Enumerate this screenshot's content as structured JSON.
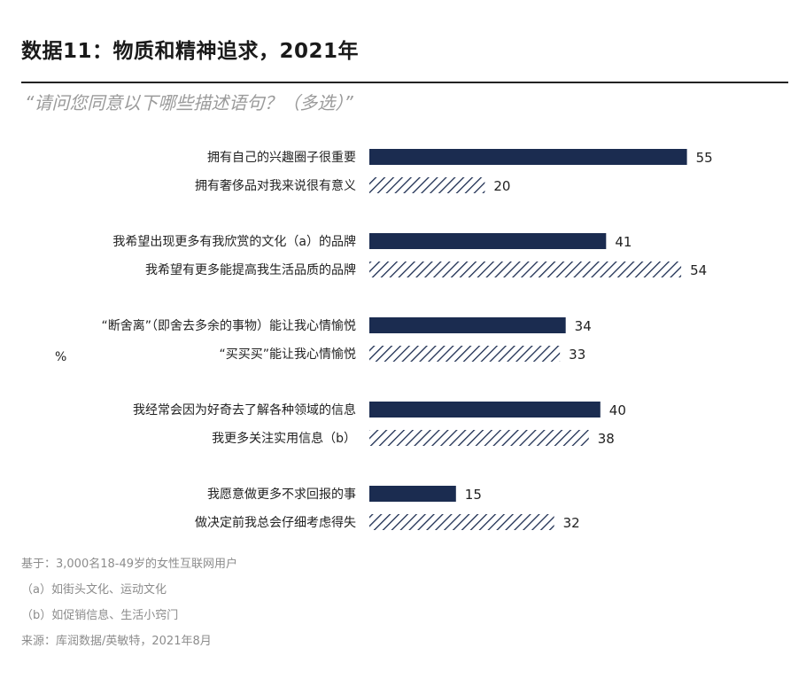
{
  "title": "数据11：物质和精神追求，2021年",
  "subtitle": "“请问您同意以下哪些描述语句？（多选）”",
  "unit_label": "%",
  "colors": {
    "solid_bar": "#1b2c50",
    "hatch_bar": "#1b2c50"
  },
  "chart_data": {
    "type": "bar",
    "orientation": "horizontal",
    "title": "数据11：物质和精神追求，2021年",
    "subtitle": "“请问您同意以下哪些描述语句？（多选）”",
    "unit": "%",
    "xlim": [
      0,
      60
    ],
    "grid": false,
    "legend": "none",
    "groups": [
      {
        "items": [
          {
            "label": "拥有自己的兴趣圈子很重要",
            "value": 55,
            "style": "solid"
          },
          {
            "label": "拥有奢侈品对我来说很有意义",
            "value": 20,
            "style": "hatched"
          }
        ]
      },
      {
        "items": [
          {
            "label": "我希望出现更多有我欣赏的文化（a）的品牌",
            "value": 41,
            "style": "solid"
          },
          {
            "label": "我希望有更多能提高我生活品质的品牌",
            "value": 54,
            "style": "hatched"
          }
        ]
      },
      {
        "items": [
          {
            "label": "“断舍离”（即舍去多余的事物）能让我心情愉悦",
            "value": 34,
            "style": "solid"
          },
          {
            "label": "“买买买”能让我心情愉悦",
            "value": 33,
            "style": "hatched"
          }
        ]
      },
      {
        "items": [
          {
            "label": "我经常会因为好奇去了解各种领域的信息",
            "value": 40,
            "style": "solid"
          },
          {
            "label": "我更多关注实用信息（b）",
            "value": 38,
            "style": "hatched"
          }
        ]
      },
      {
        "items": [
          {
            "label": "我愿意做更多不求回报的事",
            "value": 15,
            "style": "solid"
          },
          {
            "label": "做决定前我总会仔细考虑得失",
            "value": 32,
            "style": "hatched"
          }
        ]
      }
    ]
  },
  "footnotes": [
    "基于：3,000名18-49岁的女性互联网用户",
    "（a）如街头文化、运动文化",
    "（b）如促销信息、生活小窍门",
    "来源：库润数据/英敏特，2021年8月"
  ]
}
